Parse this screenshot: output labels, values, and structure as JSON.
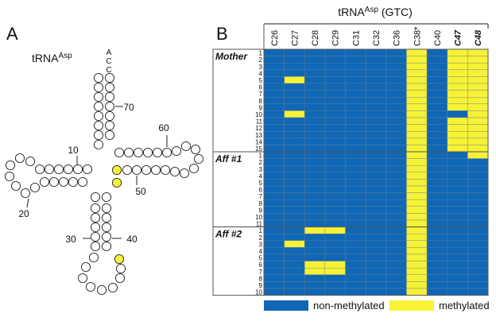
{
  "panel_a": {
    "label": "A",
    "title": "tRNA",
    "title_sup": "Asp",
    "acceptor_end": [
      "A",
      "C",
      "C"
    ],
    "position_labels": [
      10,
      20,
      30,
      40,
      50,
      60,
      70
    ]
  },
  "panel_b": {
    "label": "B",
    "title": "tRNA",
    "title_sup": "Asp",
    "title_suffix": "(GTC)",
    "columns": [
      {
        "label": "C26"
      },
      {
        "label": "C27"
      },
      {
        "label": "C28"
      },
      {
        "label": "C29"
      },
      {
        "label": "C31"
      },
      {
        "label": "C32"
      },
      {
        "label": "C36"
      },
      {
        "label": "C38*"
      },
      {
        "label": "C40"
      },
      {
        "label": "C47",
        "bold": true
      },
      {
        "label": "C48",
        "bold": true
      }
    ],
    "groups": [
      {
        "name": "Mother",
        "rows": [
          1,
          2,
          3,
          4,
          5,
          6,
          7,
          8,
          9,
          10,
          11,
          12,
          13,
          14,
          15
        ],
        "cells": [
          [
            0,
            0,
            0,
            0,
            0,
            0,
            0,
            1,
            0,
            1,
            1
          ],
          [
            0,
            0,
            0,
            0,
            0,
            0,
            0,
            1,
            0,
            1,
            1
          ],
          [
            0,
            0,
            0,
            0,
            0,
            0,
            0,
            1,
            0,
            1,
            1
          ],
          [
            0,
            0,
            0,
            0,
            0,
            0,
            0,
            1,
            0,
            1,
            1
          ],
          [
            0,
            1,
            0,
            0,
            0,
            0,
            0,
            1,
            0,
            1,
            1
          ],
          [
            0,
            0,
            0,
            0,
            0,
            0,
            0,
            1,
            0,
            1,
            1
          ],
          [
            0,
            0,
            0,
            0,
            0,
            0,
            0,
            1,
            0,
            1,
            1
          ],
          [
            0,
            0,
            0,
            0,
            0,
            0,
            0,
            1,
            0,
            1,
            1
          ],
          [
            0,
            0,
            0,
            0,
            0,
            0,
            0,
            1,
            0,
            1,
            1
          ],
          [
            0,
            1,
            0,
            0,
            0,
            0,
            0,
            1,
            0,
            0,
            1
          ],
          [
            0,
            0,
            0,
            0,
            0,
            0,
            0,
            1,
            0,
            1,
            1
          ],
          [
            0,
            0,
            0,
            0,
            0,
            0,
            0,
            1,
            0,
            1,
            1
          ],
          [
            0,
            0,
            0,
            0,
            0,
            0,
            0,
            1,
            0,
            1,
            1
          ],
          [
            0,
            0,
            0,
            0,
            0,
            0,
            0,
            1,
            0,
            1,
            1
          ],
          [
            0,
            0,
            0,
            0,
            0,
            0,
            0,
            1,
            0,
            1,
            1
          ]
        ]
      },
      {
        "name": "Aff #1",
        "rows": [
          1,
          2,
          3,
          4,
          5,
          6,
          7,
          8,
          9,
          10,
          11
        ],
        "cells": [
          [
            0,
            0,
            0,
            0,
            0,
            0,
            0,
            1,
            0,
            0,
            1
          ],
          [
            0,
            0,
            0,
            0,
            0,
            0,
            0,
            1,
            0,
            0,
            0
          ],
          [
            0,
            0,
            0,
            0,
            0,
            0,
            0,
            1,
            0,
            0,
            0
          ],
          [
            0,
            0,
            0,
            0,
            0,
            0,
            0,
            1,
            0,
            0,
            0
          ],
          [
            0,
            0,
            0,
            0,
            0,
            0,
            0,
            1,
            0,
            0,
            0
          ],
          [
            0,
            0,
            0,
            0,
            0,
            0,
            0,
            1,
            0,
            0,
            0
          ],
          [
            0,
            0,
            0,
            0,
            0,
            0,
            0,
            1,
            0,
            0,
            0
          ],
          [
            0,
            0,
            0,
            0,
            0,
            0,
            0,
            1,
            0,
            0,
            0
          ],
          [
            0,
            0,
            0,
            0,
            0,
            0,
            0,
            1,
            0,
            0,
            0
          ],
          [
            0,
            0,
            0,
            0,
            0,
            0,
            0,
            1,
            0,
            0,
            0
          ],
          [
            0,
            0,
            0,
            0,
            0,
            0,
            0,
            1,
            0,
            0,
            0
          ]
        ]
      },
      {
        "name": "Aff #2",
        "rows": [
          1,
          2,
          3,
          4,
          5,
          6,
          7,
          8,
          9,
          10
        ],
        "cells": [
          [
            0,
            0,
            1,
            1,
            0,
            0,
            0,
            1,
            0,
            0,
            0
          ],
          [
            0,
            0,
            0,
            0,
            0,
            0,
            0,
            1,
            0,
            0,
            0
          ],
          [
            0,
            1,
            0,
            0,
            0,
            0,
            0,
            1,
            0,
            0,
            0
          ],
          [
            0,
            0,
            0,
            0,
            0,
            0,
            0,
            1,
            0,
            0,
            0
          ],
          [
            0,
            0,
            0,
            0,
            0,
            0,
            0,
            1,
            0,
            0,
            0
          ],
          [
            0,
            0,
            1,
            1,
            0,
            0,
            0,
            1,
            0,
            0,
            0
          ],
          [
            0,
            0,
            1,
            1,
            0,
            0,
            0,
            1,
            0,
            0,
            0
          ],
          [
            0,
            0,
            0,
            0,
            0,
            0,
            0,
            1,
            0,
            0,
            0
          ],
          [
            0,
            0,
            0,
            0,
            0,
            0,
            0,
            1,
            0,
            0,
            0
          ],
          [
            0,
            0,
            0,
            0,
            0,
            0,
            0,
            1,
            0,
            0,
            0
          ]
        ]
      }
    ],
    "legend": {
      "non_methylated": {
        "label": "non-methylated",
        "color": "#0f67b5"
      },
      "methylated": {
        "label": "methylated",
        "color": "#f7f236"
      }
    }
  }
}
